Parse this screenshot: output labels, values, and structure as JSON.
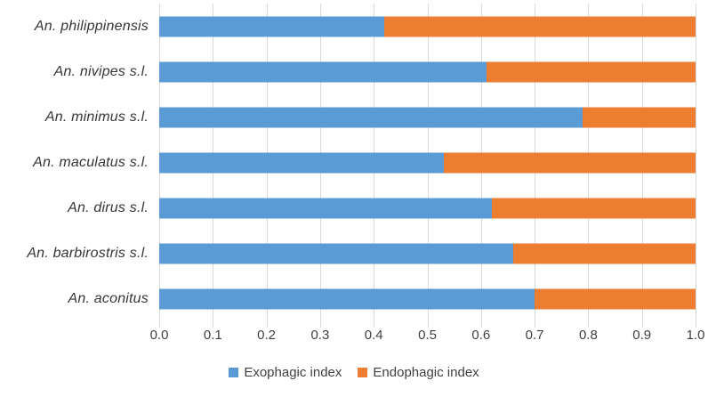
{
  "chart_data": {
    "type": "bar",
    "orientation": "horizontal",
    "stacked": true,
    "title": "",
    "xlabel": "",
    "ylabel": "",
    "xlim": [
      0.0,
      1.0
    ],
    "grid": true,
    "legend_position": "bottom",
    "categories": [
      "An. philippinensis",
      "An. nivipes s.l.",
      "An. minimus s.l.",
      "An. maculatus s.l.",
      "An. dirus s.l.",
      "An. barbirostris s.l.",
      "An. aconitus"
    ],
    "series": [
      {
        "name": "Exophagic index",
        "color": "#5B9BD5",
        "values": [
          0.42,
          0.61,
          0.79,
          0.53,
          0.62,
          0.66,
          0.7
        ]
      },
      {
        "name": "Endophagic index",
        "color": "#ED7D31",
        "values": [
          0.58,
          0.39,
          0.21,
          0.47,
          0.38,
          0.34,
          0.3
        ]
      }
    ],
    "x_ticks": [
      "0.0",
      "0.1",
      "0.2",
      "0.3",
      "0.4",
      "0.5",
      "0.6",
      "0.7",
      "0.8",
      "0.9",
      "1.0"
    ],
    "colors": {
      "gridline": "#d9d9d9",
      "axis_text": "#404040",
      "category_text": "#363636"
    }
  }
}
